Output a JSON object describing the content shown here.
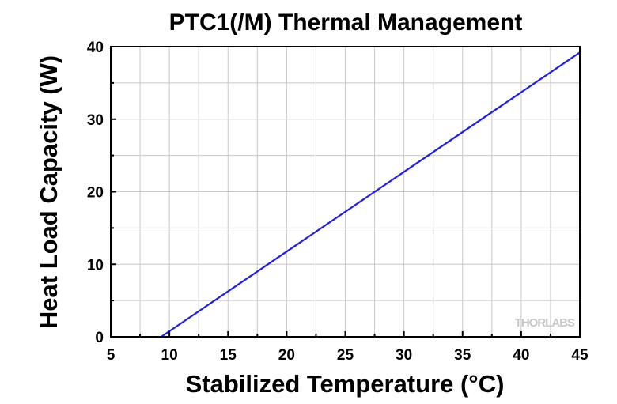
{
  "chart_data": {
    "type": "line",
    "title": "PTC1(/M) Thermal Management",
    "xlabel": "Stabilized Temperature (°C)",
    "ylabel": "Heat Load Capacity (W)",
    "xlim": [
      5,
      45
    ],
    "ylim": [
      0,
      40
    ],
    "xticks": [
      5,
      10,
      15,
      20,
      25,
      30,
      35,
      40,
      45
    ],
    "yticks": [
      0,
      10,
      20,
      30,
      40
    ],
    "x_minor_step": 2.5,
    "y_minor_step": 5,
    "grid": true,
    "watermark": "THORLABS",
    "series": [
      {
        "color": "#1e1ee6",
        "x": [
          9.3,
          45
        ],
        "y": [
          0,
          39.2
        ]
      }
    ]
  }
}
